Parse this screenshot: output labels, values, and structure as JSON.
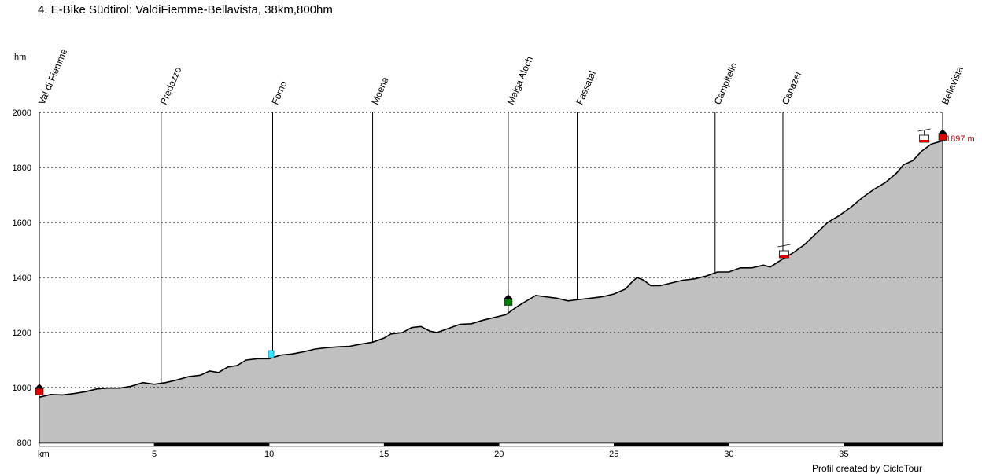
{
  "title": "4. E-Bike Südtirol: ValdiFiemme-Bellavista, 38km,800hm",
  "credit": "Profil created by CicloTour",
  "chart_data": {
    "type": "area",
    "ylabel": "hm",
    "xlabel": "km",
    "xlim": [
      0,
      39.3
    ],
    "ylim": [
      800,
      2000
    ],
    "x_ticks": [
      5,
      10,
      15,
      20,
      25,
      30,
      35
    ],
    "y_ticks": [
      800,
      1000,
      1200,
      1400,
      1600,
      1800,
      2000
    ],
    "grid": "dashed horizontal",
    "fill_color": "#c0c0c0",
    "line_color": "#000000",
    "max_label": "1897 m",
    "waypoints": [
      {
        "name": "Val di Fiemme",
        "km": 0.0
      },
      {
        "name": "Predazzo",
        "km": 5.3
      },
      {
        "name": "Forno",
        "km": 10.15
      },
      {
        "name": "Moena",
        "km": 14.5
      },
      {
        "name": "Malga Aloch",
        "km": 20.4
      },
      {
        "name": "Fassatal",
        "km": 23.4
      },
      {
        "name": "Campitello",
        "km": 29.4
      },
      {
        "name": "Canazei",
        "km": 32.35
      },
      {
        "name": "Bellavista",
        "km": 39.3
      }
    ],
    "markers": [
      {
        "type": "house-red",
        "km": 0.0,
        "elev": 985
      },
      {
        "type": "drink-cyan",
        "km": 10.1,
        "elev": 1120
      },
      {
        "type": "house-green",
        "km": 20.4,
        "elev": 1310
      },
      {
        "type": "cablecar",
        "km": 32.4,
        "elev": 1480
      },
      {
        "type": "cablecar",
        "km": 38.5,
        "elev": 1900
      },
      {
        "type": "house-red",
        "km": 39.3,
        "elev": 1910
      }
    ],
    "profile": [
      [
        0.0,
        965
      ],
      [
        0.5,
        975
      ],
      [
        1.0,
        973
      ],
      [
        1.5,
        978
      ],
      [
        2.0,
        985
      ],
      [
        2.5,
        995
      ],
      [
        3.0,
        998
      ],
      [
        3.5,
        998
      ],
      [
        4.0,
        1005
      ],
      [
        4.5,
        1018
      ],
      [
        5.0,
        1012
      ],
      [
        5.5,
        1018
      ],
      [
        6.0,
        1028
      ],
      [
        6.5,
        1040
      ],
      [
        7.0,
        1045
      ],
      [
        7.4,
        1060
      ],
      [
        7.8,
        1055
      ],
      [
        8.2,
        1075
      ],
      [
        8.6,
        1080
      ],
      [
        9.0,
        1100
      ],
      [
        9.5,
        1105
      ],
      [
        10.0,
        1105
      ],
      [
        10.5,
        1118
      ],
      [
        11.0,
        1122
      ],
      [
        11.5,
        1130
      ],
      [
        12.0,
        1140
      ],
      [
        12.5,
        1145
      ],
      [
        13.0,
        1148
      ],
      [
        13.5,
        1150
      ],
      [
        14.0,
        1158
      ],
      [
        14.5,
        1165
      ],
      [
        15.0,
        1180
      ],
      [
        15.3,
        1195
      ],
      [
        15.8,
        1200
      ],
      [
        16.2,
        1218
      ],
      [
        16.6,
        1222
      ],
      [
        17.0,
        1205
      ],
      [
        17.3,
        1200
      ],
      [
        17.8,
        1215
      ],
      [
        18.3,
        1230
      ],
      [
        18.8,
        1232
      ],
      [
        19.3,
        1245
      ],
      [
        19.8,
        1255
      ],
      [
        20.3,
        1265
      ],
      [
        20.8,
        1295
      ],
      [
        21.3,
        1320
      ],
      [
        21.6,
        1335
      ],
      [
        22.0,
        1330
      ],
      [
        22.5,
        1325
      ],
      [
        23.0,
        1315
      ],
      [
        23.5,
        1320
      ],
      [
        24.0,
        1325
      ],
      [
        24.5,
        1330
      ],
      [
        25.0,
        1340
      ],
      [
        25.5,
        1358
      ],
      [
        25.8,
        1385
      ],
      [
        26.0,
        1400
      ],
      [
        26.3,
        1390
      ],
      [
        26.6,
        1370
      ],
      [
        27.0,
        1370
      ],
      [
        27.5,
        1380
      ],
      [
        28.0,
        1390
      ],
      [
        28.5,
        1395
      ],
      [
        29.0,
        1405
      ],
      [
        29.5,
        1420
      ],
      [
        30.0,
        1420
      ],
      [
        30.5,
        1435
      ],
      [
        31.0,
        1435
      ],
      [
        31.5,
        1445
      ],
      [
        31.8,
        1438
      ],
      [
        32.3,
        1465
      ],
      [
        32.8,
        1490
      ],
      [
        33.3,
        1520
      ],
      [
        33.8,
        1560
      ],
      [
        34.3,
        1600
      ],
      [
        34.8,
        1625
      ],
      [
        35.3,
        1655
      ],
      [
        35.8,
        1690
      ],
      [
        36.3,
        1720
      ],
      [
        36.8,
        1745
      ],
      [
        37.3,
        1780
      ],
      [
        37.6,
        1810
      ],
      [
        38.0,
        1825
      ],
      [
        38.4,
        1860
      ],
      [
        38.8,
        1885
      ],
      [
        39.3,
        1897
      ]
    ]
  }
}
